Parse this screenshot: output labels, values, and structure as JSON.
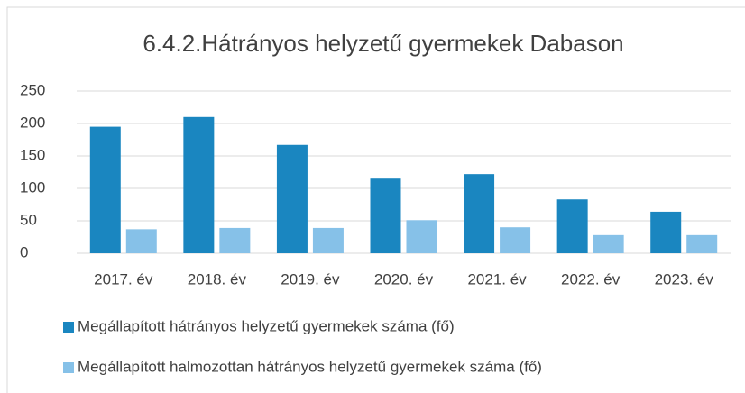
{
  "chart_data": {
    "type": "bar",
    "title": "6.4.2.Hátrányos helyzetű gyermekek Dabason",
    "categories": [
      "2017. év",
      "2018. év",
      "2019. év",
      "2020. év",
      "2021. év",
      "2022. év",
      "2023. év"
    ],
    "series": [
      {
        "name": "Megállapított hátrányos helyzetű gyermekek száma (fő)",
        "color": "#1a86c0",
        "values": [
          195,
          210,
          167,
          115,
          122,
          83,
          64
        ]
      },
      {
        "name": "Megállapított halmozottan hátrányos helyzetű gyermekek száma (fő)",
        "color": "#86c1e8",
        "values": [
          37,
          39,
          39,
          51,
          40,
          28,
          28
        ]
      }
    ],
    "ylim": [
      0,
      250
    ],
    "yticks": [
      0,
      50,
      100,
      150,
      200,
      250
    ],
    "grid": true,
    "legend": "bottom"
  }
}
